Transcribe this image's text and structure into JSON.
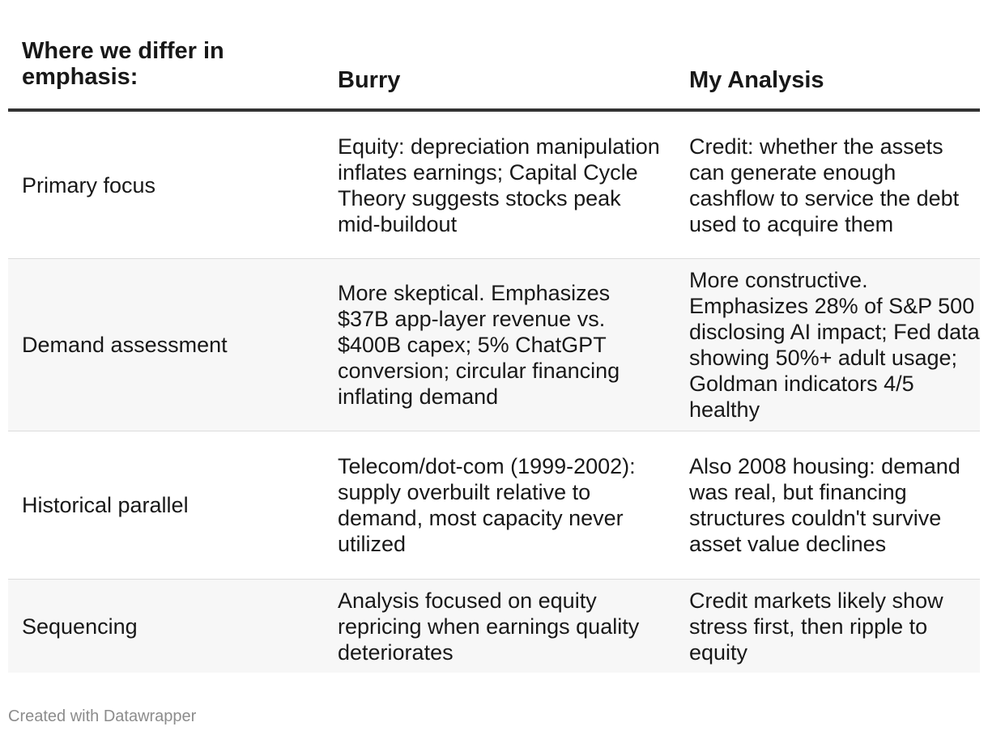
{
  "chart_data": {
    "type": "table",
    "columns": [
      "Where we differ in emphasis:",
      "Burry",
      "My Analysis"
    ],
    "rows": [
      {
        "label": "Primary focus",
        "burry": "Equity: depreciation manipulation inflates earnings; Capital Cycle Theory suggests stocks peak mid-buildout",
        "analysis": "Credit: whether the assets can generate enough cashflow to service the debt used to acquire them"
      },
      {
        "label": "Demand assessment",
        "burry": "More skeptical. Emphasizes $37B app-layer revenue vs. $400B capex; 5% ChatGPT conversion; circular financing inflating demand",
        "analysis": "More constructive. Emphasizes 28% of S&P 500 disclosing AI impact; Fed data showing 50%+ adult usage; Goldman indicators 4/5 healthy"
      },
      {
        "label": "Historical parallel",
        "burry": "Telecom/dot-com (1999-2002): supply overbuilt relative to demand, most capacity never utilized",
        "analysis": "Also 2008 housing: demand was real, but financing structures couldn't survive asset value declines"
      },
      {
        "label": "Sequencing",
        "burry": "Analysis focused on equity repricing when earnings quality deteriorates",
        "analysis": "Credit markets likely show stress first, then ripple to equity"
      }
    ]
  },
  "footer": {
    "credit": "Created with Datawrapper"
  }
}
